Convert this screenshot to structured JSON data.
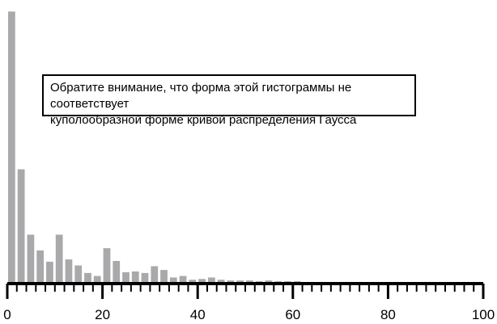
{
  "chart_data": {
    "type": "bar",
    "bin_width": 2,
    "x": [
      0,
      2,
      4,
      6,
      8,
      10,
      12,
      14,
      16,
      18,
      20,
      22,
      24,
      26,
      28,
      30,
      32,
      34,
      36,
      38,
      40,
      42,
      44,
      46,
      48,
      50,
      52,
      54,
      56,
      58,
      60
    ],
    "values": [
      360,
      150,
      63,
      42,
      27,
      63,
      30,
      22,
      12,
      8,
      45,
      28,
      13,
      14,
      12,
      21,
      16,
      6,
      8,
      3,
      4,
      6,
      3,
      2,
      2,
      2,
      1,
      2,
      1,
      1,
      1
    ],
    "xlim": [
      0,
      100
    ],
    "ylim": [
      0,
      370
    ],
    "x_ticks": [
      "0",
      "20",
      "40",
      "60",
      "80",
      "100"
    ],
    "title": "",
    "xlabel": "",
    "ylabel": "",
    "bar_color": "#a9a9ab",
    "grid": false,
    "annotation": {
      "line1": "Обратите внимание, что форма этой гистограммы не соответствует",
      "line2": "куполообразной форме кривой распределения Гаусса"
    }
  }
}
